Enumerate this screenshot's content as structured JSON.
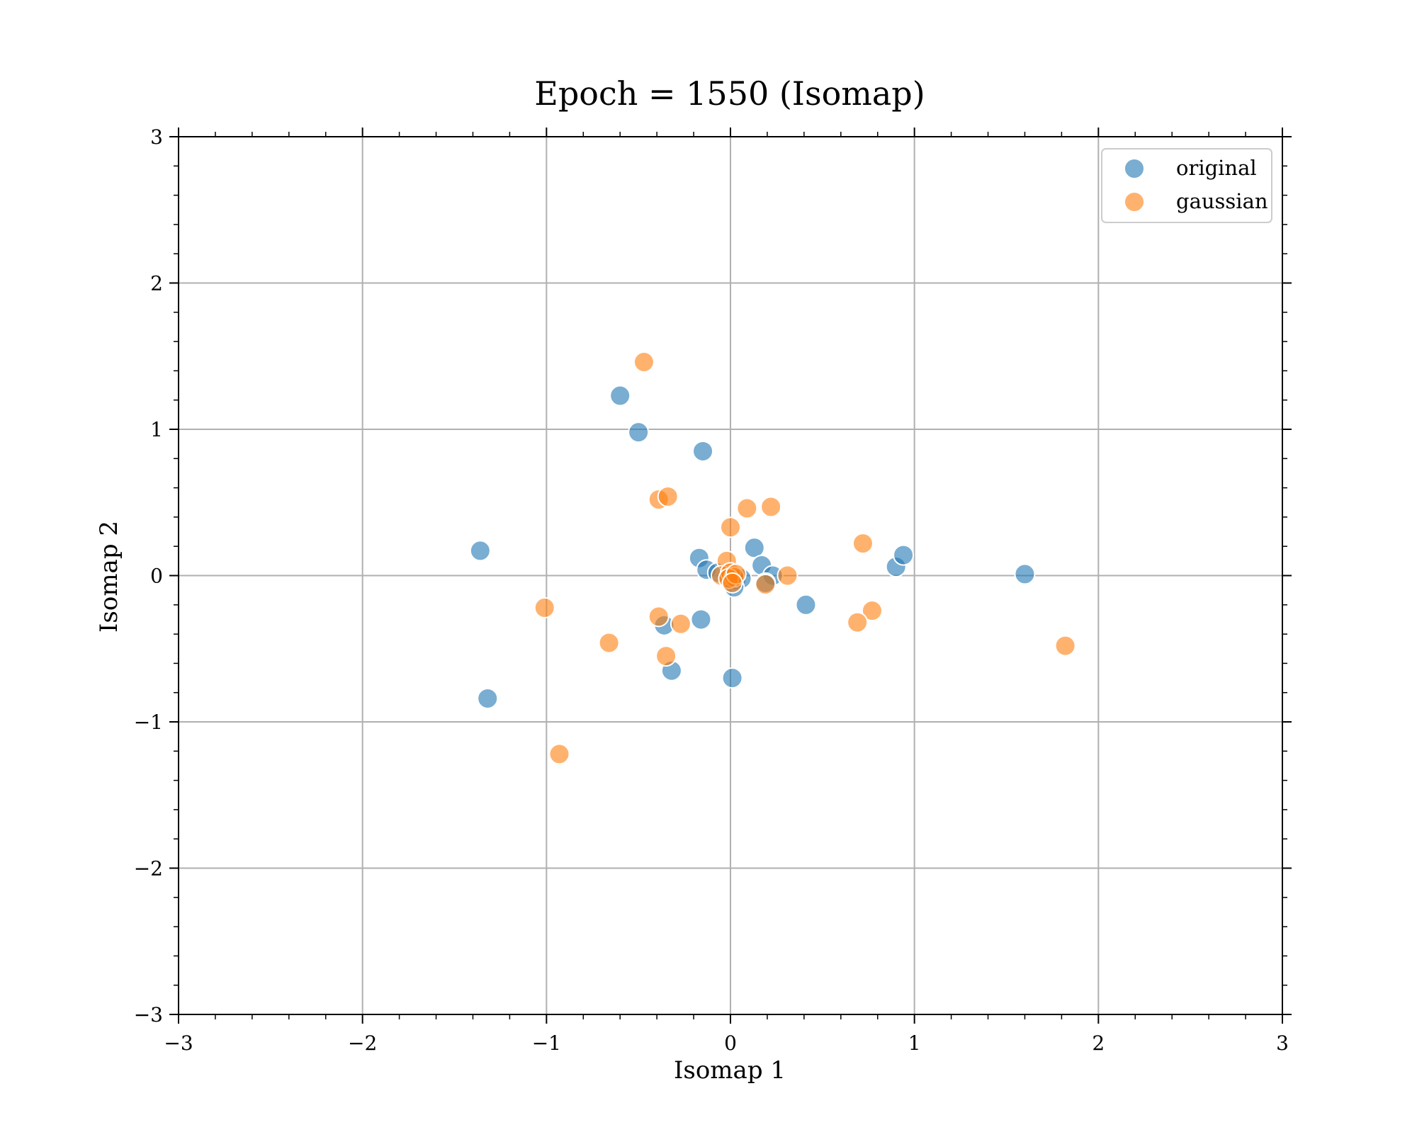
{
  "chart_data": {
    "type": "scatter",
    "title": "Epoch = 1550 (Isomap)",
    "xlabel": "Isomap 1",
    "ylabel": "Isomap 2",
    "xlim": [
      -3,
      3
    ],
    "ylim": [
      -3,
      3
    ],
    "xticks": [
      -3,
      -2,
      -1,
      0,
      1,
      2,
      3
    ],
    "yticks": [
      -3,
      -2,
      -1,
      0,
      1,
      2,
      3
    ],
    "xtick_labels": [
      "−3",
      "−2",
      "−1",
      "0",
      "1",
      "2",
      "3"
    ],
    "ytick_labels": [
      "−3",
      "−2",
      "−1",
      "0",
      "1",
      "2",
      "3"
    ],
    "grid": true,
    "legend_position": "top-right",
    "series": [
      {
        "name": "original",
        "color": "#1f77b4",
        "points": [
          [
            -0.6,
            1.23
          ],
          [
            -0.5,
            0.98
          ],
          [
            -0.15,
            0.85
          ],
          [
            -1.36,
            0.17
          ],
          [
            -1.32,
            -0.84
          ],
          [
            -0.17,
            0.12
          ],
          [
            -0.13,
            0.04
          ],
          [
            -0.07,
            0.02
          ],
          [
            0.13,
            0.19
          ],
          [
            0.17,
            0.07
          ],
          [
            0.23,
            0.0
          ],
          [
            0.03,
            -0.03
          ],
          [
            0.06,
            -0.02
          ],
          [
            0.19,
            -0.05
          ],
          [
            0.41,
            -0.2
          ],
          [
            0.9,
            0.06
          ],
          [
            0.94,
            0.14
          ],
          [
            1.6,
            0.01
          ],
          [
            -0.36,
            -0.34
          ],
          [
            -0.16,
            -0.3
          ],
          [
            -0.32,
            -0.65
          ],
          [
            0.01,
            -0.7
          ],
          [
            0.02,
            -0.08
          ]
        ]
      },
      {
        "name": "gaussian",
        "color": "#ff7f0e",
        "points": [
          [
            -0.47,
            1.46
          ],
          [
            -0.39,
            0.52
          ],
          [
            -0.34,
            0.54
          ],
          [
            0.0,
            0.33
          ],
          [
            0.09,
            0.46
          ],
          [
            0.22,
            0.47
          ],
          [
            -0.02,
            0.1
          ],
          [
            0.31,
            0.0
          ],
          [
            0.19,
            -0.06
          ],
          [
            0.72,
            0.22
          ],
          [
            0.77,
            -0.24
          ],
          [
            0.69,
            -0.32
          ],
          [
            1.82,
            -0.48
          ],
          [
            -1.01,
            -0.22
          ],
          [
            -0.66,
            -0.46
          ],
          [
            -0.39,
            -0.28
          ],
          [
            -0.27,
            -0.33
          ],
          [
            -0.35,
            -0.55
          ],
          [
            -0.93,
            -1.22
          ],
          [
            -0.05,
            0.0
          ],
          [
            0.0,
            0.02
          ],
          [
            0.02,
            -0.01
          ],
          [
            -0.01,
            -0.02
          ],
          [
            0.03,
            0.01
          ],
          [
            0.01,
            -0.05
          ]
        ]
      }
    ]
  }
}
